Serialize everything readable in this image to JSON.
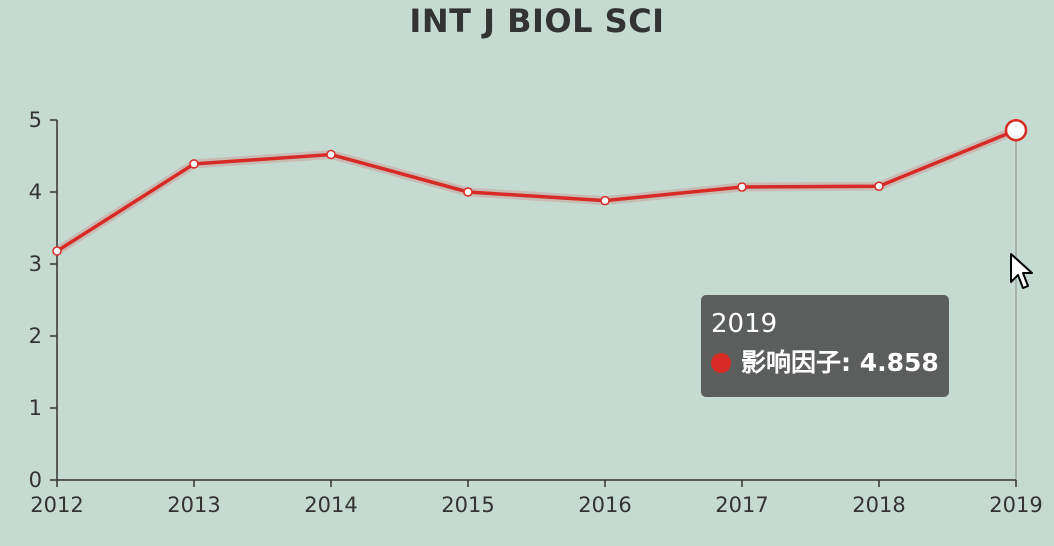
{
  "chart_data": {
    "type": "line",
    "title": "INT J BIOL SCI",
    "xlabel": "",
    "ylabel": "",
    "categories": [
      "2012",
      "2013",
      "2014",
      "2015",
      "2016",
      "2017",
      "2018",
      "2019"
    ],
    "series": [
      {
        "name": "影响因子",
        "values": [
          3.18,
          4.39,
          4.52,
          4.0,
          3.88,
          4.07,
          4.08,
          4.858
        ]
      }
    ],
    "ylim": [
      0,
      5
    ],
    "yticks": [
      "0",
      "1",
      "2",
      "3",
      "4",
      "5"
    ],
    "grid": false,
    "legend": "none",
    "colors": {
      "line": "#d82a25",
      "axis": "#333333",
      "background": "#c5dbd2"
    }
  },
  "tooltip": {
    "title": "2019",
    "series_name": "影响因子",
    "value": "4.858",
    "text": "影响因子: 4.858",
    "marker_color": "#d82a25"
  },
  "cursor": {
    "icon": "mouse-pointer-icon"
  }
}
